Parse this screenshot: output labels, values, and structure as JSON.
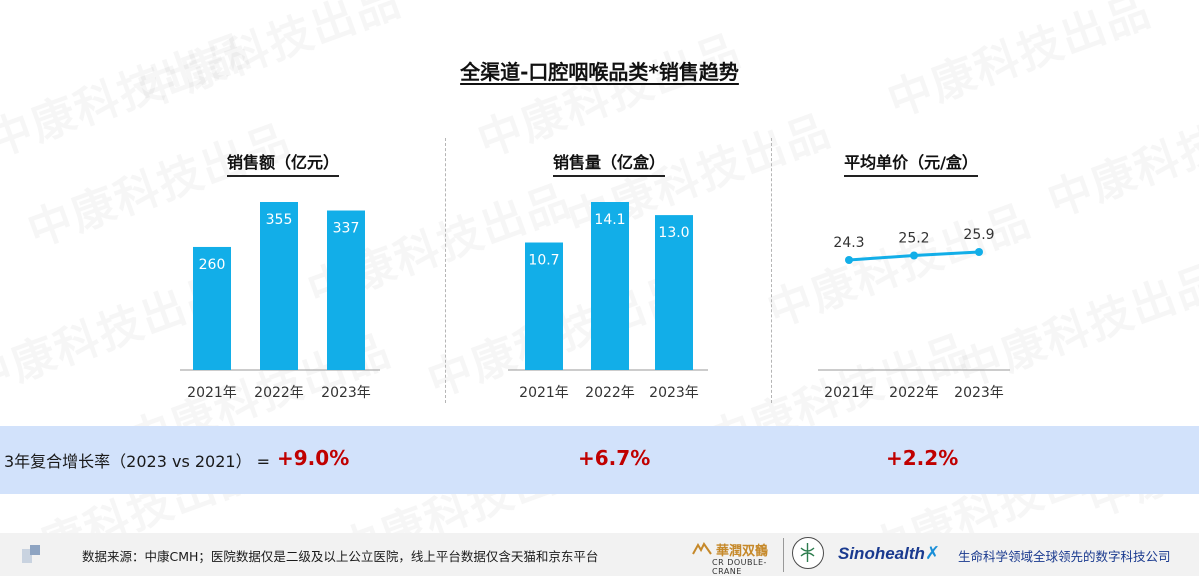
{
  "watermark": "中康科技出品",
  "title": "全渠道-口腔咽喉品类*销售趋势",
  "panels": [
    {
      "title": "销售额（亿元）"
    },
    {
      "title": "销售量（亿盒）"
    },
    {
      "title": "平均单价（元/盒）"
    }
  ],
  "chart_data": [
    {
      "type": "bar",
      "title": "销售额（亿元）",
      "categories": [
        "2021年",
        "2022年",
        "2023年"
      ],
      "values": [
        260,
        355,
        337
      ],
      "labels": [
        "260",
        "355",
        "337"
      ],
      "color": "#12aee8",
      "ylim": [
        0,
        355
      ]
    },
    {
      "type": "bar",
      "title": "销售量（亿盒）",
      "categories": [
        "2021年",
        "2022年",
        "2023年"
      ],
      "values": [
        10.7,
        14.1,
        13.0
      ],
      "labels": [
        "10.7",
        "14.1",
        "13.0"
      ],
      "color": "#12aee8",
      "ylim": [
        0,
        14.1
      ]
    },
    {
      "type": "line",
      "title": "平均单价（元/盒）",
      "categories": [
        "2021年",
        "2022年",
        "2023年"
      ],
      "values": [
        24.3,
        25.2,
        25.9
      ],
      "labels": [
        "24.3",
        "25.2",
        "25.9"
      ],
      "color": "#12aee8"
    }
  ],
  "cagr": {
    "label": "3年复合增长率（2023 vs 2021） =",
    "values": [
      "+9.0%",
      "+6.7%",
      "+2.2%"
    ],
    "color": "#c00000"
  },
  "footer": {
    "source": "数据来源：中康CMH；医院数据仅是二级及以上公立医院，线上平台数据仅含天猫和京东平台",
    "logo_double_crane_cn": "華潤双鶴",
    "logo_double_crane_en": "CR DOUBLE-CRANE",
    "logo_sinohealth": "Sinohealth",
    "tagline": "生命科学领域全球领先的数字科技公司"
  }
}
